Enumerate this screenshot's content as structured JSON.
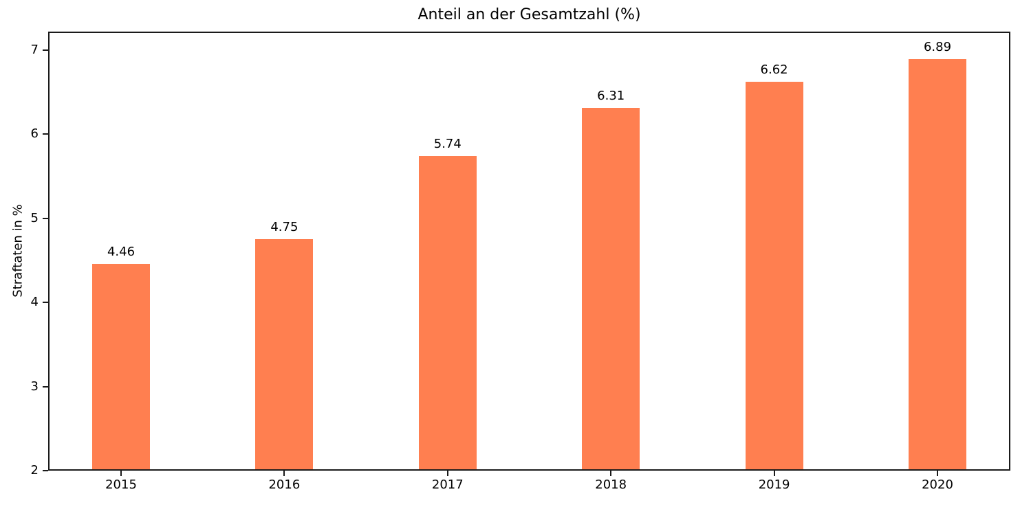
{
  "chart_data": {
    "type": "bar",
    "title": "Anteil an der Gesamtzahl (%)",
    "xlabel": "",
    "ylabel": "Straftaten in %",
    "categories": [
      "2015",
      "2016",
      "2017",
      "2018",
      "2019",
      "2020"
    ],
    "values": [
      4.46,
      4.75,
      5.74,
      6.31,
      6.62,
      6.89
    ],
    "bar_labels": [
      "4.46",
      "4.75",
      "5.74",
      "6.31",
      "6.62",
      "6.89"
    ],
    "yticks": [
      2,
      3,
      4,
      5,
      6,
      7
    ],
    "ytick_labels": [
      "2",
      "3",
      "4",
      "5",
      "6",
      "7"
    ],
    "ylim": [
      2,
      7.22
    ],
    "bar_color": "#FF7F50",
    "axis_color": "#1a1a1a",
    "grid": false,
    "legend": null
  }
}
